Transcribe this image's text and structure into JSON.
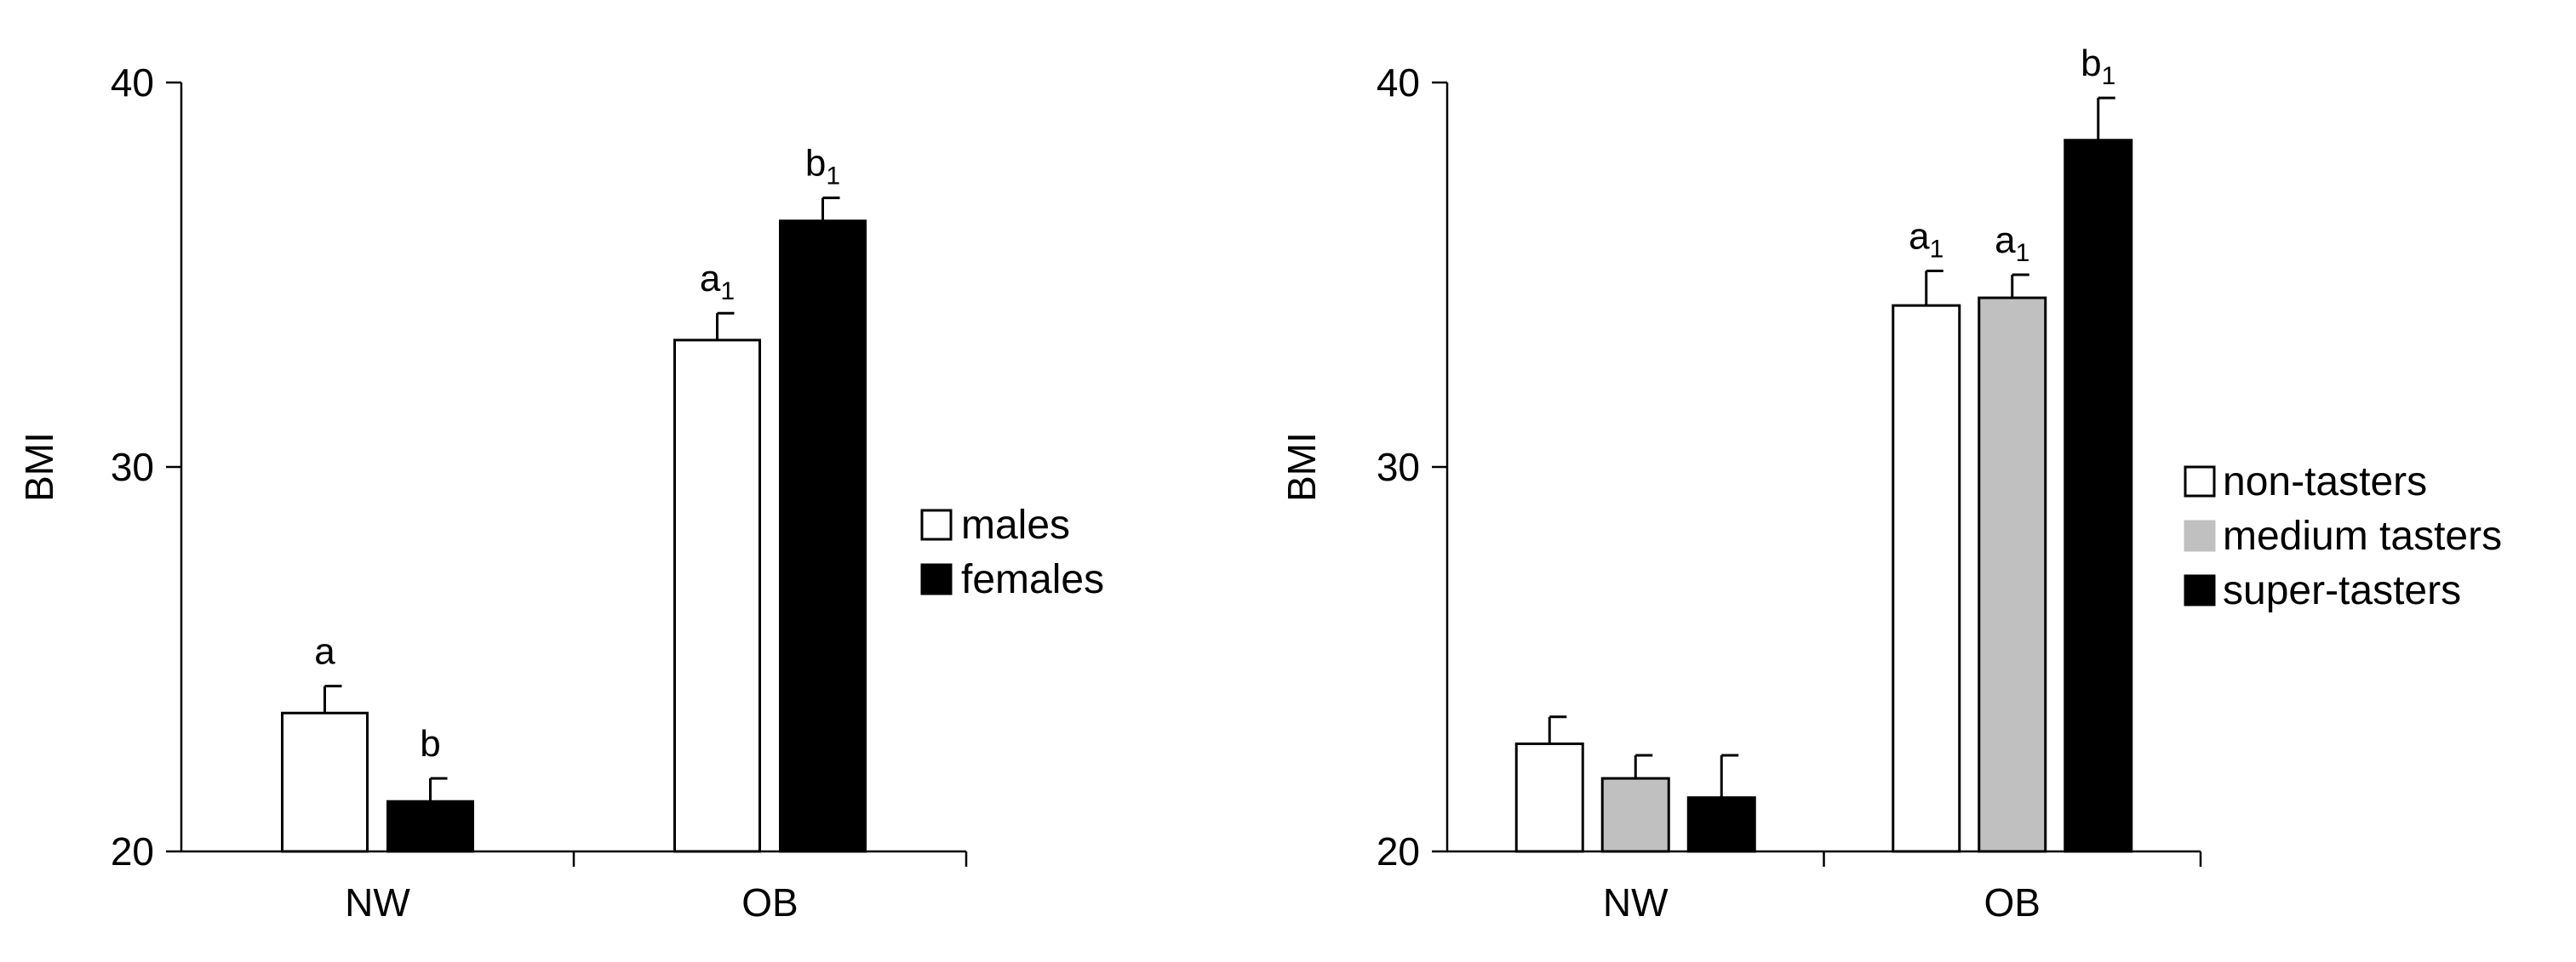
{
  "chart_data": [
    {
      "type": "bar",
      "panel": "left",
      "ylabel": "BMI",
      "ylim": [
        20,
        40
      ],
      "yticks": [
        20,
        30,
        40
      ],
      "categories": [
        "NW",
        "OB"
      ],
      "series": [
        {
          "name": "males",
          "color": "#ffffff",
          "values": [
            23.6,
            33.3
          ],
          "errors": [
            0.7,
            0.7
          ],
          "labels": [
            "a",
            "a1"
          ]
        },
        {
          "name": "females",
          "color": "#000000",
          "values": [
            21.3,
            36.4
          ],
          "errors": [
            0.6,
            0.6
          ],
          "labels": [
            "b",
            "b1"
          ]
        }
      ],
      "legend": [
        "males",
        "females"
      ],
      "legend_position": "right"
    },
    {
      "type": "bar",
      "panel": "right",
      "ylabel": "BMI",
      "ylim": [
        20,
        40
      ],
      "yticks": [
        20,
        30,
        40
      ],
      "categories": [
        "NW",
        "OB"
      ],
      "series": [
        {
          "name": "non-tasters",
          "color": "#ffffff",
          "values": [
            22.8,
            34.2
          ],
          "errors": [
            0.7,
            0.9
          ],
          "labels": [
            "",
            "a1"
          ]
        },
        {
          "name": "medium tasters",
          "color": "#c0c0c0",
          "values": [
            21.9,
            34.4
          ],
          "errors": [
            0.6,
            0.6
          ],
          "labels": [
            "",
            "a1"
          ]
        },
        {
          "name": "super-tasters",
          "color": "#000000",
          "values": [
            21.4,
            38.5
          ],
          "errors": [
            1.1,
            1.1
          ],
          "labels": [
            "",
            "b1"
          ]
        }
      ],
      "legend": [
        "non-tasters",
        "medium tasters",
        "super-tasters"
      ],
      "legend_position": "right"
    }
  ]
}
